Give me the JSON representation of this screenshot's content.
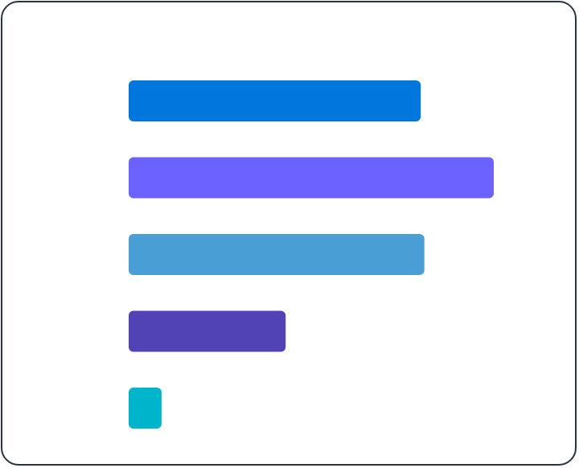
{
  "chart_data": {
    "type": "bar",
    "orientation": "horizontal",
    "categories": [
      "",
      "",
      "",
      "",
      ""
    ],
    "values": [
      80,
      100,
      81,
      43,
      9
    ],
    "colors": [
      "#0077dd",
      "#6c63ff",
      "#4a9ed6",
      "#5143b6",
      "#00b4cc"
    ],
    "xlim": [
      0,
      100
    ],
    "title": "",
    "xlabel": "",
    "ylabel": "",
    "grid": false,
    "legend": "none",
    "axes_visible": false
  },
  "theme": {
    "background": "#ffffff",
    "border_color": "#2a3340"
  }
}
